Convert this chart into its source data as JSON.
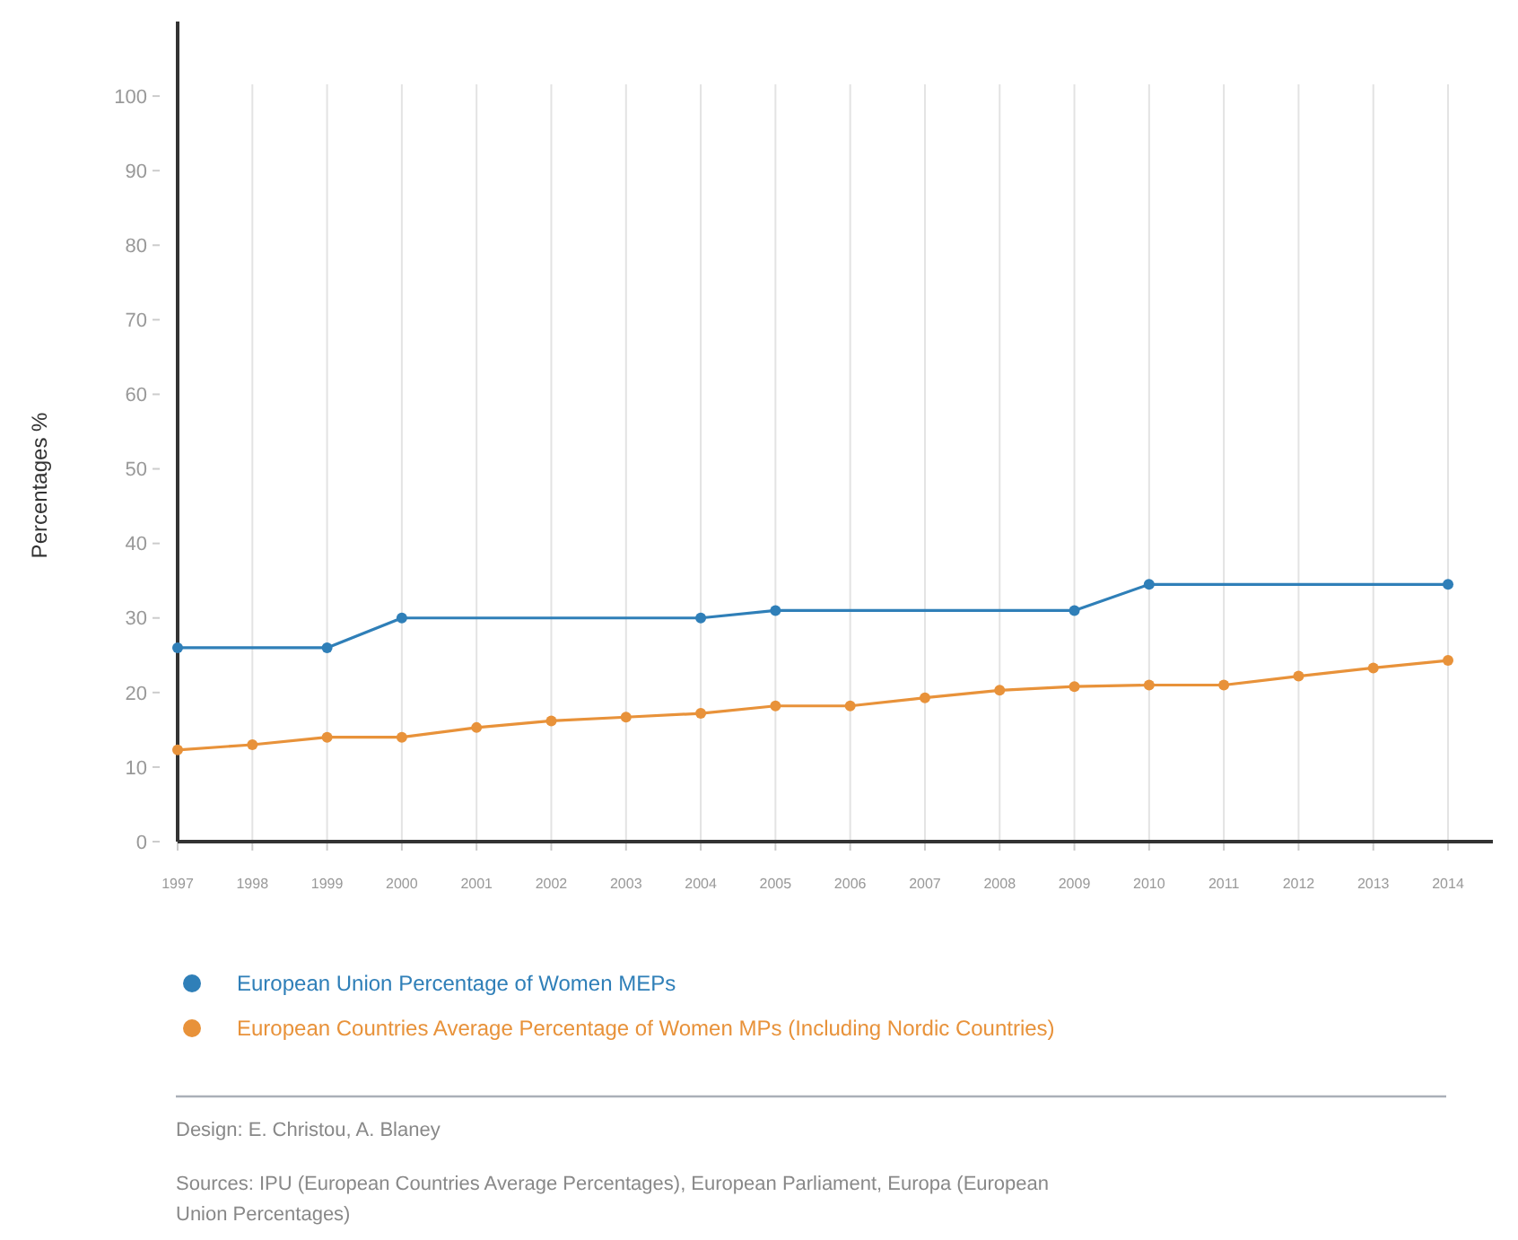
{
  "chart_data": {
    "type": "line",
    "ylabel": "Percentages %",
    "x": [
      1997,
      1998,
      1999,
      2000,
      2001,
      2002,
      2003,
      2004,
      2005,
      2006,
      2007,
      2008,
      2009,
      2010,
      2011,
      2012,
      2013,
      2014
    ],
    "series": [
      {
        "name": "European Union Percentage of Women MEPs",
        "color": "#2f7fb8",
        "x": [
          1997,
          1999,
          2000,
          2004,
          2005,
          2009,
          2010,
          2014
        ],
        "values": [
          26,
          26,
          30,
          30,
          31,
          31,
          34.5,
          34.5
        ]
      },
      {
        "name": "European Countries Average Percentage of Women MPs (Including Nordic Countries)",
        "color": "#e8923a",
        "values": [
          12.3,
          13,
          14,
          14,
          15.3,
          16.2,
          16.7,
          17.2,
          18.2,
          18.2,
          19.3,
          20.3,
          20.8,
          21,
          21,
          22.2,
          23.3,
          24.3
        ]
      }
    ],
    "xlim": [
      1997,
      2014.6
    ],
    "xticks": [
      1997,
      1998,
      1999,
      2000,
      2001,
      2002,
      2003,
      2004,
      2005,
      2006,
      2007,
      2008,
      2009,
      2010,
      2011,
      2012,
      2013,
      2014
    ],
    "ylim": [
      0,
      110
    ],
    "yticks": [
      0,
      10,
      20,
      30,
      40,
      50,
      60,
      70,
      80,
      90,
      100
    ],
    "grid": "x",
    "legend": "bottom",
    "marker": "circle",
    "line_style": "solid",
    "annotations": [
      "Design: E. Christou, A. Blaney",
      "Sources: IPU (European Countries Average Percentages), European Parliament, Europa (European Union Percentages)"
    ]
  }
}
